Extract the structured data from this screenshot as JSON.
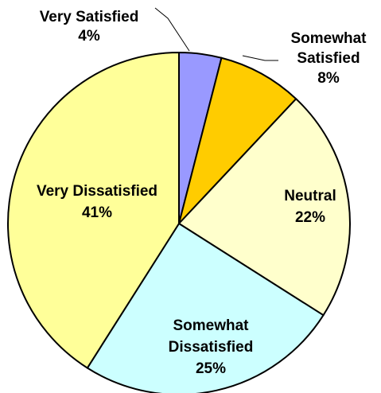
{
  "chart_data": {
    "type": "pie",
    "categories": [
      "Very Satisfied",
      "Somewhat Satisfied",
      "Neutral",
      "Somewhat Dissatisfied",
      "Very Dissatisfied"
    ],
    "values": [
      4,
      8,
      22,
      25,
      41
    ],
    "value_labels": [
      "4%",
      "8%",
      "22%",
      "25%",
      "41%"
    ],
    "label_lines": [
      [
        "Very Satisfied",
        "4%"
      ],
      [
        "Somewhat",
        "Satisfied",
        "8%"
      ],
      [
        "Neutral",
        "22%"
      ],
      [
        "Somewhat",
        "Dissatisfied",
        "25%"
      ],
      [
        "Very Dissatisfied",
        "41%"
      ]
    ],
    "colors": [
      "#9999FF",
      "#FFCC00",
      "#FFFFCC",
      "#CCFFFF",
      "#FFFF99"
    ],
    "start": "12 o'clock",
    "direction": "clockwise",
    "legend": "none",
    "slice_outline_color": "#000000"
  }
}
